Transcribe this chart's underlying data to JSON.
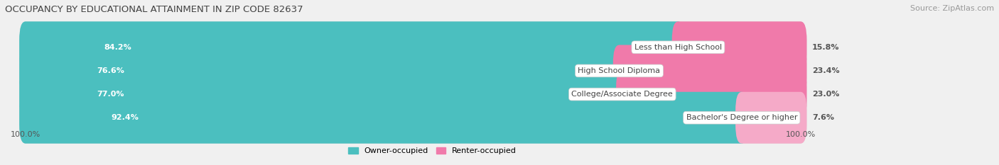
{
  "title": "OCCUPANCY BY EDUCATIONAL ATTAINMENT IN ZIP CODE 82637",
  "source": "Source: ZipAtlas.com",
  "categories": [
    "Less than High School",
    "High School Diploma",
    "College/Associate Degree",
    "Bachelor's Degree or higher"
  ],
  "owner_pct": [
    84.2,
    76.6,
    77.0,
    92.4
  ],
  "renter_pct": [
    15.8,
    23.4,
    23.0,
    7.6
  ],
  "owner_color": "#4bbfbf",
  "renter_color_0": "#f07aaa",
  "renter_color_1": "#f07aaa",
  "renter_color_2": "#f07aaa",
  "renter_color_3": "#f5aac8",
  "bar_bg_color": "#e0e0e0",
  "x_left_label": "100.0%",
  "x_right_label": "100.0%",
  "title_fontsize": 9.5,
  "source_fontsize": 8,
  "label_fontsize": 8,
  "tick_fontsize": 8,
  "legend_fontsize": 8,
  "bg_color": "#f0f0f0"
}
